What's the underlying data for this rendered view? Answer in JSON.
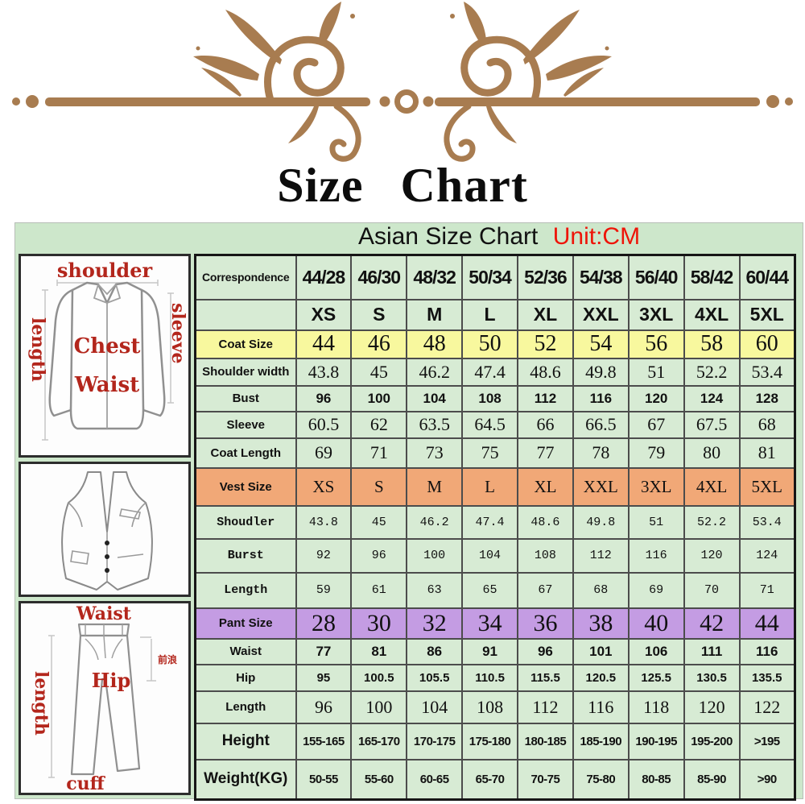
{
  "page": {
    "title": "Size Chart",
    "subtitle": "Asian Size Chart",
    "subtitle_unit": "Unit:CM"
  },
  "colors": {
    "ornament": "#a87c50",
    "panel_green": "#cde7cb",
    "cell_green": "#d7ebd4",
    "row_yellow": "#f8f89e",
    "row_orange": "#f1a877",
    "row_purple": "#c49ce3",
    "red_text": "#cf2418",
    "unit_red": "#ee1408",
    "corr_purple": "#7d3f9e",
    "green_text": "#2c5a28",
    "pant_num": "#3a2a58",
    "label_red": "#b3261c"
  },
  "diagrams": {
    "jacket": {
      "shoulder": "shoulder",
      "length": "length",
      "sleeve": "sleeve",
      "chest": "Chest",
      "waist": "Waist"
    },
    "pants": {
      "waist": "Waist",
      "length": "length",
      "hip": "Hip",
      "cuff": "cuff",
      "rise": "前浪"
    }
  },
  "chart_data": {
    "type": "table",
    "title": "Asian Size Chart",
    "unit": "CM",
    "columns": [
      "44/28",
      "46/30",
      "48/32",
      "50/34",
      "52/36",
      "54/38",
      "56/40",
      "58/42",
      "60/44"
    ],
    "rows": [
      {
        "label": "Correspondence",
        "style": "corr",
        "values": [
          "44/28",
          "46/30",
          "48/32",
          "50/34",
          "52/36",
          "54/38",
          "56/40",
          "58/42",
          "60/44"
        ]
      },
      {
        "label": "",
        "style": "redsize",
        "values": [
          "XS",
          "S",
          "M",
          "L",
          "XL",
          "XXL",
          "3XL",
          "4XL",
          "5XL"
        ]
      },
      {
        "label": "Coat Size",
        "style": "yellow",
        "values": [
          "44",
          "46",
          "48",
          "50",
          "52",
          "54",
          "56",
          "58",
          "60"
        ]
      },
      {
        "label": "Shoulder width",
        "style": "serif",
        "values": [
          "43.8",
          "45",
          "46.2",
          "47.4",
          "48.6",
          "49.8",
          "51",
          "52.2",
          "53.4"
        ]
      },
      {
        "label": "Bust",
        "style": "boldnum",
        "values": [
          "96",
          "100",
          "104",
          "108",
          "112",
          "116",
          "120",
          "124",
          "128"
        ]
      },
      {
        "label": "Sleeve",
        "style": "serif",
        "values": [
          "60.5",
          "62",
          "63.5",
          "64.5",
          "66",
          "66.5",
          "67",
          "67.5",
          "68"
        ]
      },
      {
        "label": "Coat Length",
        "style": "serif",
        "values": [
          "69",
          "71",
          "73",
          "75",
          "77",
          "78",
          "79",
          "80",
          "81"
        ]
      },
      {
        "label": "Vest Size",
        "style": "orange",
        "values": [
          "XS",
          "S",
          "M",
          "L",
          "XL",
          "XXL",
          "3XL",
          "4XL",
          "5XL"
        ]
      },
      {
        "label": "Shoudler",
        "style": "mono",
        "values": [
          "43.8",
          "45",
          "46.2",
          "47.4",
          "48.6",
          "49.8",
          "51",
          "52.2",
          "53.4"
        ]
      },
      {
        "label": "Burst",
        "style": "mono",
        "values": [
          "92",
          "96",
          "100",
          "104",
          "108",
          "112",
          "116",
          "120",
          "124"
        ]
      },
      {
        "label": "Length",
        "style": "mono",
        "values": [
          "59",
          "61",
          "63",
          "65",
          "67",
          "68",
          "69",
          "70",
          "71"
        ]
      },
      {
        "label": "Pant Size",
        "style": "purple",
        "values": [
          "28",
          "30",
          "32",
          "34",
          "36",
          "38",
          "40",
          "42",
          "44"
        ]
      },
      {
        "label": "Waist",
        "style": "boldnum",
        "values": [
          "77",
          "81",
          "86",
          "91",
          "96",
          "101",
          "106",
          "111",
          "116"
        ]
      },
      {
        "label": "Hip",
        "style": "boldnum-sm",
        "values": [
          "95",
          "100.5",
          "105.5",
          "110.5",
          "115.5",
          "120.5",
          "125.5",
          "130.5",
          "135.5"
        ]
      },
      {
        "label": "Length",
        "style": "serif",
        "values": [
          "96",
          "100",
          "104",
          "108",
          "112",
          "116",
          "118",
          "120",
          "122"
        ]
      },
      {
        "label": "Height",
        "style": "green",
        "values": [
          "155-165",
          "165-170",
          "170-175",
          "175-180",
          "180-185",
          "185-190",
          "190-195",
          "195-200",
          ">195"
        ]
      },
      {
        "label": "Weight(KG)",
        "style": "green",
        "values": [
          "50-55",
          "55-60",
          "60-65",
          "65-70",
          "70-75",
          "75-80",
          "80-85",
          "85-90",
          ">90"
        ]
      }
    ]
  }
}
